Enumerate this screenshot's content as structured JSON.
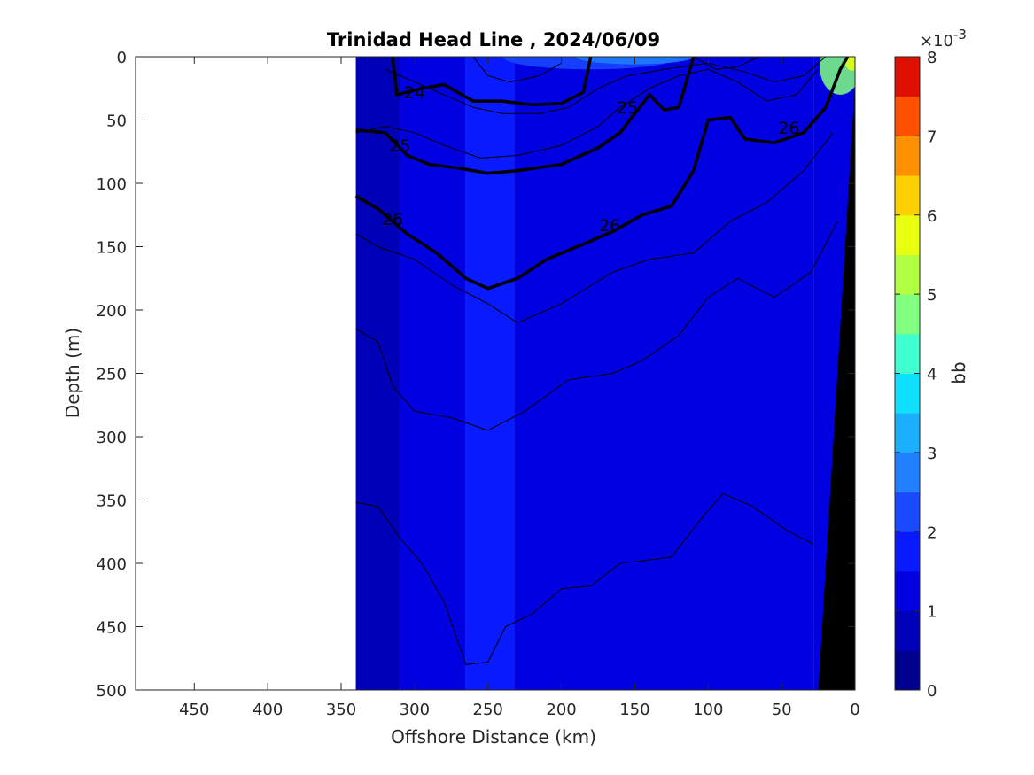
{
  "chart_data": {
    "type": "heatmap",
    "title": "Trinidad Head Line , 2024/06/09",
    "xlabel": "Offshore Distance (km)",
    "ylabel": "Depth (m)",
    "x_reversed": true,
    "xlim": [
      490,
      0
    ],
    "ylim": [
      0,
      500
    ],
    "y_reversed": true,
    "xticks": [
      450,
      400,
      350,
      300,
      250,
      200,
      150,
      100,
      50,
      0
    ],
    "yticks": [
      0,
      50,
      100,
      150,
      200,
      250,
      300,
      350,
      400,
      450,
      500
    ],
    "colorbar": {
      "label": "bb",
      "exponent_label": "×10",
      "exponent_power": "-3",
      "ticks": [
        0,
        1,
        2,
        3,
        4,
        5,
        6,
        7,
        8
      ],
      "range": [
        0,
        0.008
      ],
      "levels": 16,
      "colors": [
        "#00008f",
        "#0000b8",
        "#0000e0",
        "#0a1aff",
        "#1a4aff",
        "#2080ff",
        "#1ab0ff",
        "#10e0ff",
        "#40ffd0",
        "#80ff80",
        "#b0ff40",
        "#e8ff10",
        "#ffd000",
        "#ff9000",
        "#ff5000",
        "#e01000",
        "#a00000"
      ]
    },
    "data_extent_km": [
      340,
      0
    ],
    "background_field": [
      {
        "x0": 340,
        "x1": 310,
        "y0": 0,
        "y1": 500,
        "value": 0.0008
      },
      {
        "x0": 310,
        "x1": 265,
        "y0": 0,
        "y1": 500,
        "value": 0.0011
      },
      {
        "x0": 265,
        "x1": 232,
        "y0": 0,
        "y1": 500,
        "value": 0.0015
      },
      {
        "x0": 232,
        "x1": 28,
        "y0": 0,
        "y1": 500,
        "value": 0.0012
      },
      {
        "x0": 28,
        "x1": 0,
        "y0": 0,
        "y1": 500,
        "value": 0.0013
      }
    ],
    "surface_patches": [
      {
        "x": 180,
        "y": 0,
        "rx": 60,
        "ry": 10,
        "value": 0.0024
      },
      {
        "x": 150,
        "y": 0,
        "rx": 40,
        "ry": 6,
        "value": 0.0028
      },
      {
        "x": 10,
        "y": 8,
        "rx": 14,
        "ry": 22,
        "value": 0.0045
      },
      {
        "x": 2,
        "y": 3,
        "rx": 5,
        "ry": 8,
        "value": 0.0058
      }
    ],
    "seafloor": [
      [
        25,
        500
      ],
      [
        0,
        20
      ],
      [
        0,
        500
      ]
    ],
    "contours_thin": [
      [
        [
          340,
          215
        ],
        [
          325,
          225
        ],
        [
          315,
          260
        ],
        [
          300,
          280
        ],
        [
          275,
          285
        ],
        [
          250,
          295
        ],
        [
          225,
          280
        ],
        [
          195,
          255
        ],
        [
          165,
          250
        ],
        [
          145,
          240
        ],
        [
          120,
          220
        ],
        [
          100,
          190
        ],
        [
          80,
          175
        ],
        [
          55,
          190
        ],
        [
          30,
          170
        ],
        [
          12,
          130
        ]
      ],
      [
        [
          340,
          352
        ],
        [
          325,
          355
        ],
        [
          310,
          380
        ],
        [
          295,
          400
        ],
        [
          280,
          430
        ],
        [
          265,
          480
        ],
        [
          250,
          478
        ],
        [
          238,
          450
        ],
        [
          220,
          440
        ],
        [
          200,
          420
        ],
        [
          180,
          418
        ],
        [
          160,
          400
        ],
        [
          145,
          398
        ],
        [
          125,
          395
        ],
        [
          105,
          365
        ],
        [
          90,
          345
        ],
        [
          70,
          355
        ],
        [
          45,
          375
        ],
        [
          28,
          385
        ]
      ],
      [
        [
          340,
          140
        ],
        [
          325,
          150
        ],
        [
          300,
          160
        ],
        [
          275,
          180
        ],
        [
          250,
          195
        ],
        [
          230,
          210
        ],
        [
          200,
          195
        ],
        [
          165,
          170
        ],
        [
          140,
          160
        ],
        [
          110,
          155
        ],
        [
          85,
          130
        ],
        [
          60,
          115
        ],
        [
          35,
          90
        ],
        [
          15,
          60
        ]
      ],
      [
        [
          340,
          60
        ],
        [
          320,
          55
        ],
        [
          300,
          60
        ],
        [
          280,
          70
        ],
        [
          255,
          80
        ],
        [
          230,
          78
        ],
        [
          200,
          70
        ],
        [
          175,
          55
        ],
        [
          160,
          40
        ],
        [
          140,
          25
        ],
        [
          120,
          15
        ],
        [
          100,
          10
        ],
        [
          80,
          20
        ],
        [
          60,
          35
        ],
        [
          40,
          30
        ],
        [
          25,
          10
        ]
      ],
      [
        [
          320,
          10
        ],
        [
          300,
          20
        ],
        [
          280,
          30
        ],
        [
          260,
          40
        ],
        [
          240,
          45
        ],
        [
          215,
          45
        ],
        [
          195,
          40
        ],
        [
          175,
          25
        ],
        [
          155,
          15
        ],
        [
          130,
          10
        ],
        [
          100,
          5
        ],
        [
          75,
          12
        ],
        [
          55,
          20
        ],
        [
          35,
          15
        ],
        [
          20,
          0
        ]
      ],
      [
        [
          260,
          0
        ],
        [
          250,
          15
        ],
        [
          235,
          20
        ],
        [
          215,
          15
        ],
        [
          200,
          5
        ]
      ],
      [
        [
          110,
          0
        ],
        [
          95,
          10
        ],
        [
          80,
          8
        ],
        [
          65,
          0
        ]
      ]
    ],
    "contours_thick": [
      {
        "label": "24",
        "label_at": [
          300,
          28
        ],
        "points": [
          [
            315,
            0
          ],
          [
            312,
            30
          ],
          [
            295,
            25
          ],
          [
            280,
            22
          ],
          [
            260,
            35
          ],
          [
            240,
            35
          ],
          [
            220,
            38
          ],
          [
            200,
            37
          ],
          [
            185,
            28
          ],
          [
            180,
            0
          ]
        ]
      },
      {
        "label": "25",
        "label_at": [
          310,
          70
        ],
        "points": [
          [
            340,
            58
          ],
          [
            320,
            60
          ],
          [
            305,
            78
          ],
          [
            290,
            85
          ],
          [
            270,
            88
          ],
          [
            250,
            92
          ],
          [
            230,
            90
          ],
          [
            200,
            85
          ],
          [
            175,
            72
          ],
          [
            160,
            60
          ],
          [
            150,
            45
          ],
          [
            140,
            30
          ],
          [
            130,
            42
          ],
          [
            120,
            40
          ],
          [
            115,
            20
          ],
          [
            110,
            0
          ]
        ]
      },
      {
        "label": "25",
        "label_at": [
          155,
          40
        ],
        "points": []
      },
      {
        "label": "26",
        "label_at": [
          315,
          128
        ],
        "points": [
          [
            340,
            110
          ],
          [
            325,
            120
          ],
          [
            305,
            140
          ],
          [
            285,
            155
          ],
          [
            265,
            175
          ],
          [
            250,
            183
          ],
          [
            230,
            175
          ],
          [
            210,
            160
          ],
          [
            185,
            148
          ],
          [
            165,
            138
          ],
          [
            145,
            125
          ],
          [
            125,
            118
          ],
          [
            110,
            90
          ],
          [
            100,
            50
          ],
          [
            85,
            48
          ],
          [
            75,
            65
          ],
          [
            55,
            68
          ],
          [
            35,
            60
          ],
          [
            20,
            40
          ],
          [
            10,
            10
          ],
          [
            5,
            0
          ]
        ]
      },
      {
        "label": "26",
        "label_at": [
          167,
          133
        ],
        "points": []
      },
      {
        "label": "26",
        "label_at": [
          45,
          56
        ],
        "points": []
      }
    ]
  }
}
